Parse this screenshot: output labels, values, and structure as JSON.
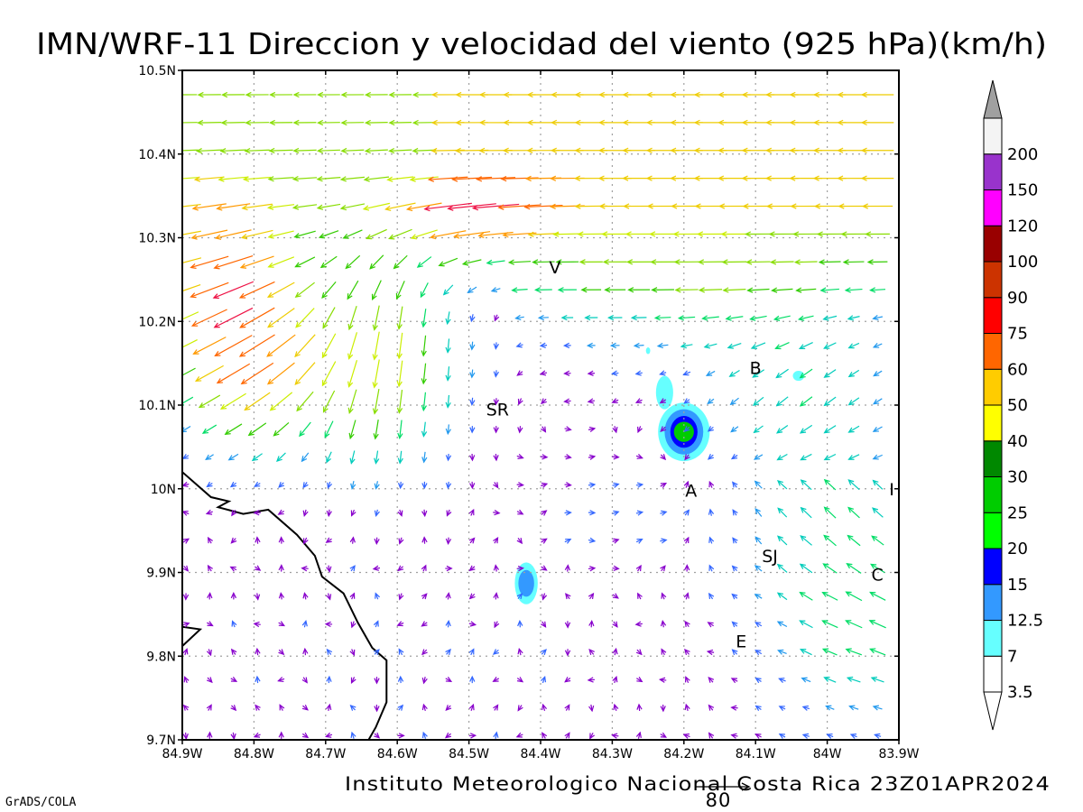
{
  "title": "IMN/WRF-11 Direccion y velocidad del viento (925 hPa)(km/h)",
  "credit": "Instituto Meteorologico Nacional Costa Rica 23Z01APR2024",
  "software": "GrADS/COLA",
  "reference_vector_label": "80",
  "colors": {
    "frame": "#000000",
    "grid": "#a0a0a0",
    "coast": "#000000"
  },
  "chart_data": {
    "type": "vector-field",
    "variable": "wind direction and speed at 925 hPa (km/h)",
    "xlim": [
      -84.9,
      -83.9
    ],
    "ylim": [
      9.7,
      10.5
    ],
    "x_ticks": [
      {
        "value": -84.9,
        "label": "84.9W"
      },
      {
        "value": -84.8,
        "label": "84.8W"
      },
      {
        "value": -84.7,
        "label": "84.7W"
      },
      {
        "value": -84.6,
        "label": "84.6W"
      },
      {
        "value": -84.5,
        "label": "84.5W"
      },
      {
        "value": -84.4,
        "label": "84.4W"
      },
      {
        "value": -84.3,
        "label": "84.3W"
      },
      {
        "value": -84.2,
        "label": "84.2W"
      },
      {
        "value": -84.1,
        "label": "84.1W"
      },
      {
        "value": -84.0,
        "label": "84W"
      },
      {
        "value": -83.9,
        "label": "83.9W"
      }
    ],
    "y_ticks": [
      {
        "value": 9.7,
        "label": "9.7N"
      },
      {
        "value": 9.8,
        "label": "9.8N"
      },
      {
        "value": 9.9,
        "label": "9.9N"
      },
      {
        "value": 10.0,
        "label": "10N"
      },
      {
        "value": 10.1,
        "label": "10.1N"
      },
      {
        "value": 10.2,
        "label": "10.2N"
      },
      {
        "value": 10.3,
        "label": "10.3N"
      },
      {
        "value": 10.4,
        "label": "10.4N"
      },
      {
        "value": 10.5,
        "label": "10.5N"
      }
    ],
    "grid": true,
    "colorbar": {
      "placement": "right",
      "bins": [
        {
          "label": "3.5",
          "color": "#ffffff"
        },
        {
          "label": "7",
          "color": "#66ffff"
        },
        {
          "label": "12.5",
          "color": "#3399ff"
        },
        {
          "label": "15",
          "color": "#0000ff"
        },
        {
          "label": "20",
          "color": "#00ff00"
        },
        {
          "label": "25",
          "color": "#00cc00"
        },
        {
          "label": "30",
          "color": "#008800"
        },
        {
          "label": "40",
          "color": "#ffff00"
        },
        {
          "label": "50",
          "color": "#ffcc00"
        },
        {
          "label": "60",
          "color": "#ff6600"
        },
        {
          "label": "75",
          "color": "#ff0000"
        },
        {
          "label": "90",
          "color": "#cc3300"
        },
        {
          "label": "100",
          "color": "#990000"
        },
        {
          "label": "120",
          "color": "#ff00ff"
        },
        {
          "label": "150",
          "color": "#9933cc"
        },
        {
          "label": "200",
          "color": "#f4f4f4"
        }
      ],
      "over_color": "#a0a0a0",
      "under_color": "#ffffff"
    },
    "vector_color_scale": [
      {
        "min": 0,
        "max": 3,
        "color": "#8800cc"
      },
      {
        "min": 3,
        "max": 6,
        "color": "#3366ff"
      },
      {
        "min": 6,
        "max": 9,
        "color": "#2299ee"
      },
      {
        "min": 9,
        "max": 12,
        "color": "#00ccbb"
      },
      {
        "min": 12,
        "max": 15,
        "color": "#00dd66"
      },
      {
        "min": 15,
        "max": 18,
        "color": "#33cc00"
      },
      {
        "min": 18,
        "max": 21,
        "color": "#88dd00"
      },
      {
        "min": 21,
        "max": 24,
        "color": "#ccee00"
      },
      {
        "min": 24,
        "max": 27,
        "color": "#eecc00"
      },
      {
        "min": 27,
        "max": 30,
        "color": "#ff9900"
      },
      {
        "min": 30,
        "max": 35,
        "color": "#ff6600"
      },
      {
        "min": 35,
        "max": 999,
        "color": "#ee1144"
      }
    ],
    "locations": [
      {
        "label": "V",
        "lon": -84.38,
        "lat": 10.265
      },
      {
        "label": "B",
        "lon": -84.1,
        "lat": 10.145
      },
      {
        "label": "SR",
        "lon": -84.46,
        "lat": 10.095
      },
      {
        "label": "A",
        "lon": -84.19,
        "lat": 9.998
      },
      {
        "label": "SJ",
        "lon": -84.08,
        "lat": 9.92
      },
      {
        "label": "C",
        "lon": -83.93,
        "lat": 9.898
      },
      {
        "label": "E",
        "lon": -84.12,
        "lat": 9.818
      },
      {
        "label": "I",
        "lon": -83.91,
        "lat": 10.0
      }
    ],
    "speed_contours": [
      {
        "lon": -84.2,
        "lat": 10.068,
        "levels": [
          {
            "rx": 0.036,
            "ry": 0.035,
            "color": "#66ffff"
          },
          {
            "rx": 0.027,
            "ry": 0.027,
            "color": "#3399ff"
          },
          {
            "rx": 0.019,
            "ry": 0.019,
            "color": "#0000ff"
          },
          {
            "rx": 0.014,
            "ry": 0.012,
            "color": "#00cc00"
          }
        ]
      },
      {
        "lon": -84.42,
        "lat": 9.887,
        "levels": [
          {
            "rx": 0.016,
            "ry": 0.025,
            "color": "#66ffff"
          },
          {
            "rx": 0.011,
            "ry": 0.016,
            "color": "#3399ff"
          }
        ]
      },
      {
        "lon": -84.227,
        "lat": 10.115,
        "levels": [
          {
            "rx": 0.012,
            "ry": 0.02,
            "color": "#66ffff"
          }
        ]
      },
      {
        "lon": -84.04,
        "lat": 10.135,
        "levels": [
          {
            "rx": 0.008,
            "ry": 0.006,
            "color": "#66ffff"
          }
        ]
      },
      {
        "lon": -84.25,
        "lat": 10.165,
        "levels": [
          {
            "rx": 0.003,
            "ry": 0.004,
            "color": "#66ffff"
          }
        ]
      }
    ],
    "coastline": [
      [
        -84.9,
        10.02
      ],
      [
        -84.86,
        9.99
      ],
      [
        -84.835,
        9.985
      ],
      [
        -84.85,
        9.978
      ],
      [
        -84.815,
        9.97
      ],
      [
        -84.78,
        9.975
      ],
      [
        -84.74,
        9.945
      ],
      [
        -84.715,
        9.92
      ],
      [
        -84.705,
        9.895
      ],
      [
        -84.675,
        9.875
      ],
      [
        -84.655,
        9.84
      ],
      [
        -84.635,
        9.81
      ],
      [
        -84.615,
        9.795
      ],
      [
        -84.615,
        9.745
      ],
      [
        -84.63,
        9.715
      ],
      [
        -84.64,
        9.7
      ]
    ],
    "coastline_spur": [
      [
        -84.9,
        9.812
      ],
      [
        -84.875,
        9.832
      ],
      [
        -84.9,
        9.835
      ]
    ],
    "wind_field": {
      "spacing": 0.0333,
      "description": "NE-E trade winds in the north (up to ~40 km/h, strongest ~10.33N 84.5W and 10.15N 84.8W), southward flow 84.75W-84.55W, weak variable winds (<5 km/h) in the south-west, convergence east of 84.3W"
    }
  }
}
